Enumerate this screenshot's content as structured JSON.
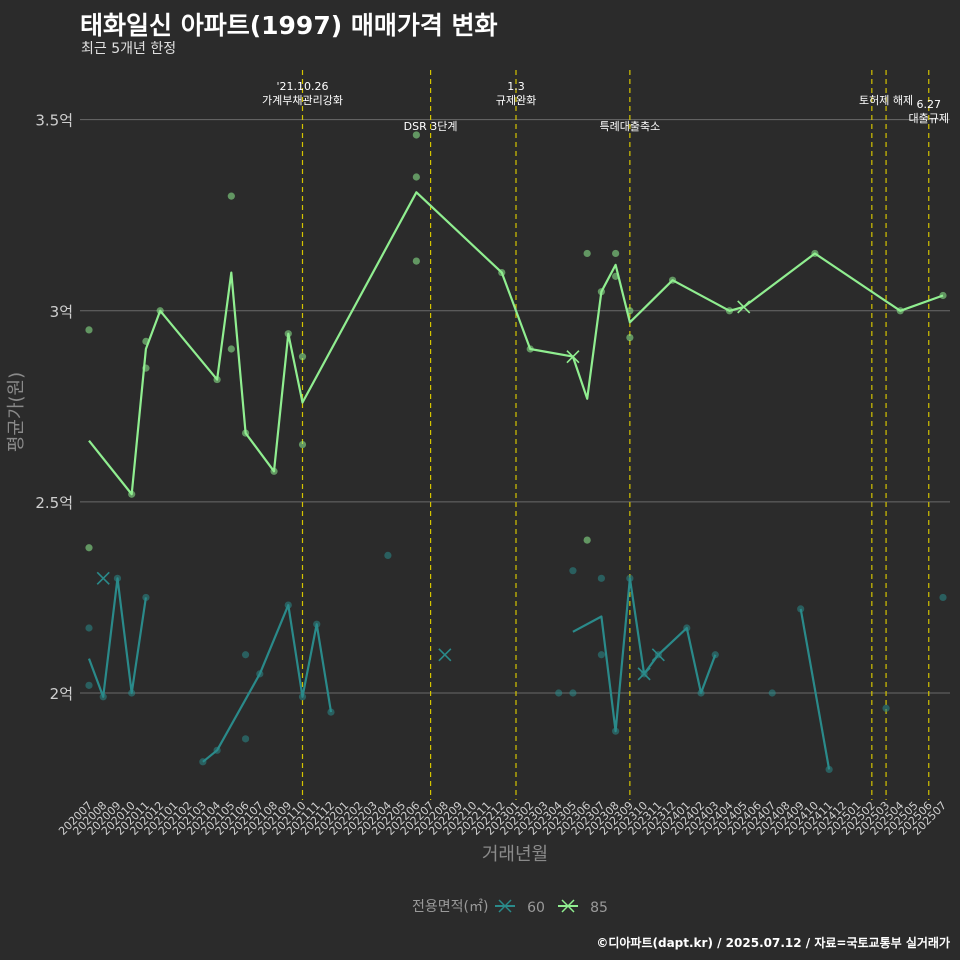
{
  "title": "태화일신 아파트(1997) 매매가격 변화",
  "subtitle": "최근 5개년 한정",
  "caption": "©디아파트(dapt.kr) / 2025.07.12 / 자료=국토교통부 실거래가",
  "chart_data": {
    "type": "line",
    "xlabel": "거래년월",
    "ylabel": "평균가(원)",
    "ylim": [
      1.72,
      3.63
    ],
    "yticks": [
      {
        "value": 2.0,
        "label": "2억"
      },
      {
        "value": 2.5,
        "label": "2.5억"
      },
      {
        "value": 3.0,
        "label": "3억"
      },
      {
        "value": 3.5,
        "label": "3.5억"
      }
    ],
    "categories": [
      "202007",
      "202008",
      "202009",
      "202010",
      "202011",
      "202012",
      "202101",
      "202102",
      "202103",
      "202104",
      "202105",
      "202106",
      "202107",
      "202108",
      "202109",
      "202110",
      "202111",
      "202112",
      "202201",
      "202202",
      "202203",
      "202204",
      "202205",
      "202206",
      "202207",
      "202208",
      "202209",
      "202210",
      "202211",
      "202212",
      "202301",
      "202302",
      "202303",
      "202304",
      "202305",
      "202306",
      "202307",
      "202308",
      "202309",
      "202310",
      "202311",
      "202312",
      "202401",
      "202402",
      "202403",
      "202404",
      "202405",
      "202406",
      "202407",
      "202408",
      "202409",
      "202410",
      "202411",
      "202412",
      "202501",
      "202502",
      "202503",
      "202504",
      "202505",
      "202506",
      "202507"
    ],
    "grid": true,
    "legend": {
      "title": "전용면적(㎡)",
      "position": "bottom"
    },
    "series": [
      {
        "name": "60",
        "color": "#2a8a8a",
        "line_segments": [
          [
            [
              "202007",
              2.09
            ],
            [
              "202008",
              1.99
            ],
            [
              "202009",
              2.3
            ],
            [
              "202010",
              2.0
            ],
            [
              "202011",
              2.25
            ]
          ],
          [
            [
              "202103",
              1.82
            ],
            [
              "202104",
              1.85
            ],
            [
              "202107",
              2.05
            ],
            [
              "202109",
              2.23
            ],
            [
              "202110",
              1.99
            ],
            [
              "202111",
              2.18
            ],
            [
              "202112",
              1.95
            ]
          ],
          [
            [
              "202305",
              2.16
            ],
            [
              "202307",
              2.2
            ],
            [
              "202308",
              1.9
            ],
            [
              "202309",
              2.3
            ],
            [
              "202310",
              2.05
            ],
            [
              "202311",
              2.1
            ],
            [
              "202401",
              2.17
            ],
            [
              "202402",
              2.0
            ],
            [
              "202403",
              2.1
            ]
          ],
          [
            [
              "202409",
              2.22
            ],
            [
              "202411",
              1.8
            ]
          ]
        ],
        "points": [
          [
            "202007",
            2.17
          ],
          [
            "202007",
            2.02
          ],
          [
            "202008",
            1.99
          ],
          [
            "202009",
            2.3
          ],
          [
            "202010",
            2.0
          ],
          [
            "202011",
            2.25
          ],
          [
            "202103",
            1.82
          ],
          [
            "202104",
            1.85
          ],
          [
            "202106",
            2.1
          ],
          [
            "202106",
            1.88
          ],
          [
            "202107",
            2.05
          ],
          [
            "202109",
            2.23
          ],
          [
            "202110",
            1.99
          ],
          [
            "202111",
            2.18
          ],
          [
            "202112",
            1.95
          ],
          [
            "202204",
            2.36
          ],
          [
            "202304",
            2.0
          ],
          [
            "202305",
            2.32
          ],
          [
            "202305",
            2.0
          ],
          [
            "202307",
            2.3
          ],
          [
            "202307",
            2.1
          ],
          [
            "202308",
            1.9
          ],
          [
            "202309",
            2.3
          ],
          [
            "202310",
            2.05
          ],
          [
            "202311",
            2.1
          ],
          [
            "202401",
            2.17
          ],
          [
            "202402",
            2.0
          ],
          [
            "202403",
            2.1
          ],
          [
            "202407",
            2.0
          ],
          [
            "202409",
            2.22
          ],
          [
            "202411",
            1.8
          ],
          [
            "202503",
            1.96
          ],
          [
            "202507",
            2.25
          ]
        ],
        "cancelled": [
          [
            "202008",
            2.3
          ],
          [
            "202208",
            2.1
          ],
          [
            "202310",
            2.05
          ],
          [
            "202311",
            2.1
          ]
        ]
      },
      {
        "name": "85",
        "color": "#90ee90",
        "line_segments": [
          [
            [
              "202007",
              2.66
            ],
            [
              "202010",
              2.52
            ],
            [
              "202011",
              2.9
            ],
            [
              "202012",
              3.0
            ],
            [
              "202104",
              2.82
            ],
            [
              "202105",
              3.1
            ],
            [
              "202106",
              2.68
            ],
            [
              "202108",
              2.58
            ],
            [
              "202109",
              2.94
            ],
            [
              "202110",
              2.76
            ],
            [
              "202206",
              3.31
            ],
            [
              "202212",
              3.1
            ],
            [
              "202302",
              2.9
            ],
            [
              "202305",
              2.88
            ],
            [
              "202306",
              2.77
            ],
            [
              "202307",
              3.05
            ],
            [
              "202308",
              3.12
            ],
            [
              "202309",
              2.97
            ],
            [
              "202312",
              3.08
            ],
            [
              "202404",
              3.0
            ],
            [
              "202405",
              3.01
            ],
            [
              "202410",
              3.15
            ],
            [
              "202504",
              3.0
            ],
            [
              "202507",
              3.04
            ]
          ]
        ],
        "points": [
          [
            "202007",
            2.95
          ],
          [
            "202007",
            2.38
          ],
          [
            "202010",
            2.52
          ],
          [
            "202011",
            2.92
          ],
          [
            "202011",
            2.85
          ],
          [
            "202012",
            3.0
          ],
          [
            "202104",
            2.82
          ],
          [
            "202105",
            3.3
          ],
          [
            "202105",
            2.9
          ],
          [
            "202106",
            2.68
          ],
          [
            "202108",
            2.58
          ],
          [
            "202109",
            2.94
          ],
          [
            "202110",
            2.88
          ],
          [
            "202110",
            2.65
          ],
          [
            "202206",
            3.46
          ],
          [
            "202206",
            3.35
          ],
          [
            "202206",
            3.13
          ],
          [
            "202212",
            3.1
          ],
          [
            "202302",
            2.9
          ],
          [
            "202306",
            3.15
          ],
          [
            "202306",
            2.4
          ],
          [
            "202307",
            3.05
          ],
          [
            "202308",
            3.15
          ],
          [
            "202308",
            3.09
          ],
          [
            "202309",
            3.0
          ],
          [
            "202309",
            2.93
          ],
          [
            "202312",
            3.08
          ],
          [
            "202404",
            3.0
          ],
          [
            "202410",
            3.15
          ],
          [
            "202504",
            3.0
          ],
          [
            "202507",
            3.04
          ]
        ],
        "cancelled": [
          [
            "202305",
            2.88
          ],
          [
            "202405",
            3.01
          ]
        ]
      }
    ],
    "events": [
      {
        "x": "202110",
        "lines": [
          "'21.10.26",
          "가계부채관리강화"
        ],
        "row": 0
      },
      {
        "x": "202207",
        "lines": [
          "DSR 3단계"
        ],
        "row": 2
      },
      {
        "x": "202301",
        "lines": [
          "1.3",
          "규제완화"
        ],
        "row": 0
      },
      {
        "x": "202309",
        "lines": [
          "특례대출축소"
        ],
        "row": 2
      },
      {
        "x": "202502",
        "lines": [],
        "row": 0
      },
      {
        "x": "202503",
        "lines": [
          "토허제 해제"
        ],
        "row": 1
      },
      {
        "x": "202506",
        "lines": [
          "6.27",
          "대출규제"
        ],
        "row": 3
      }
    ]
  }
}
